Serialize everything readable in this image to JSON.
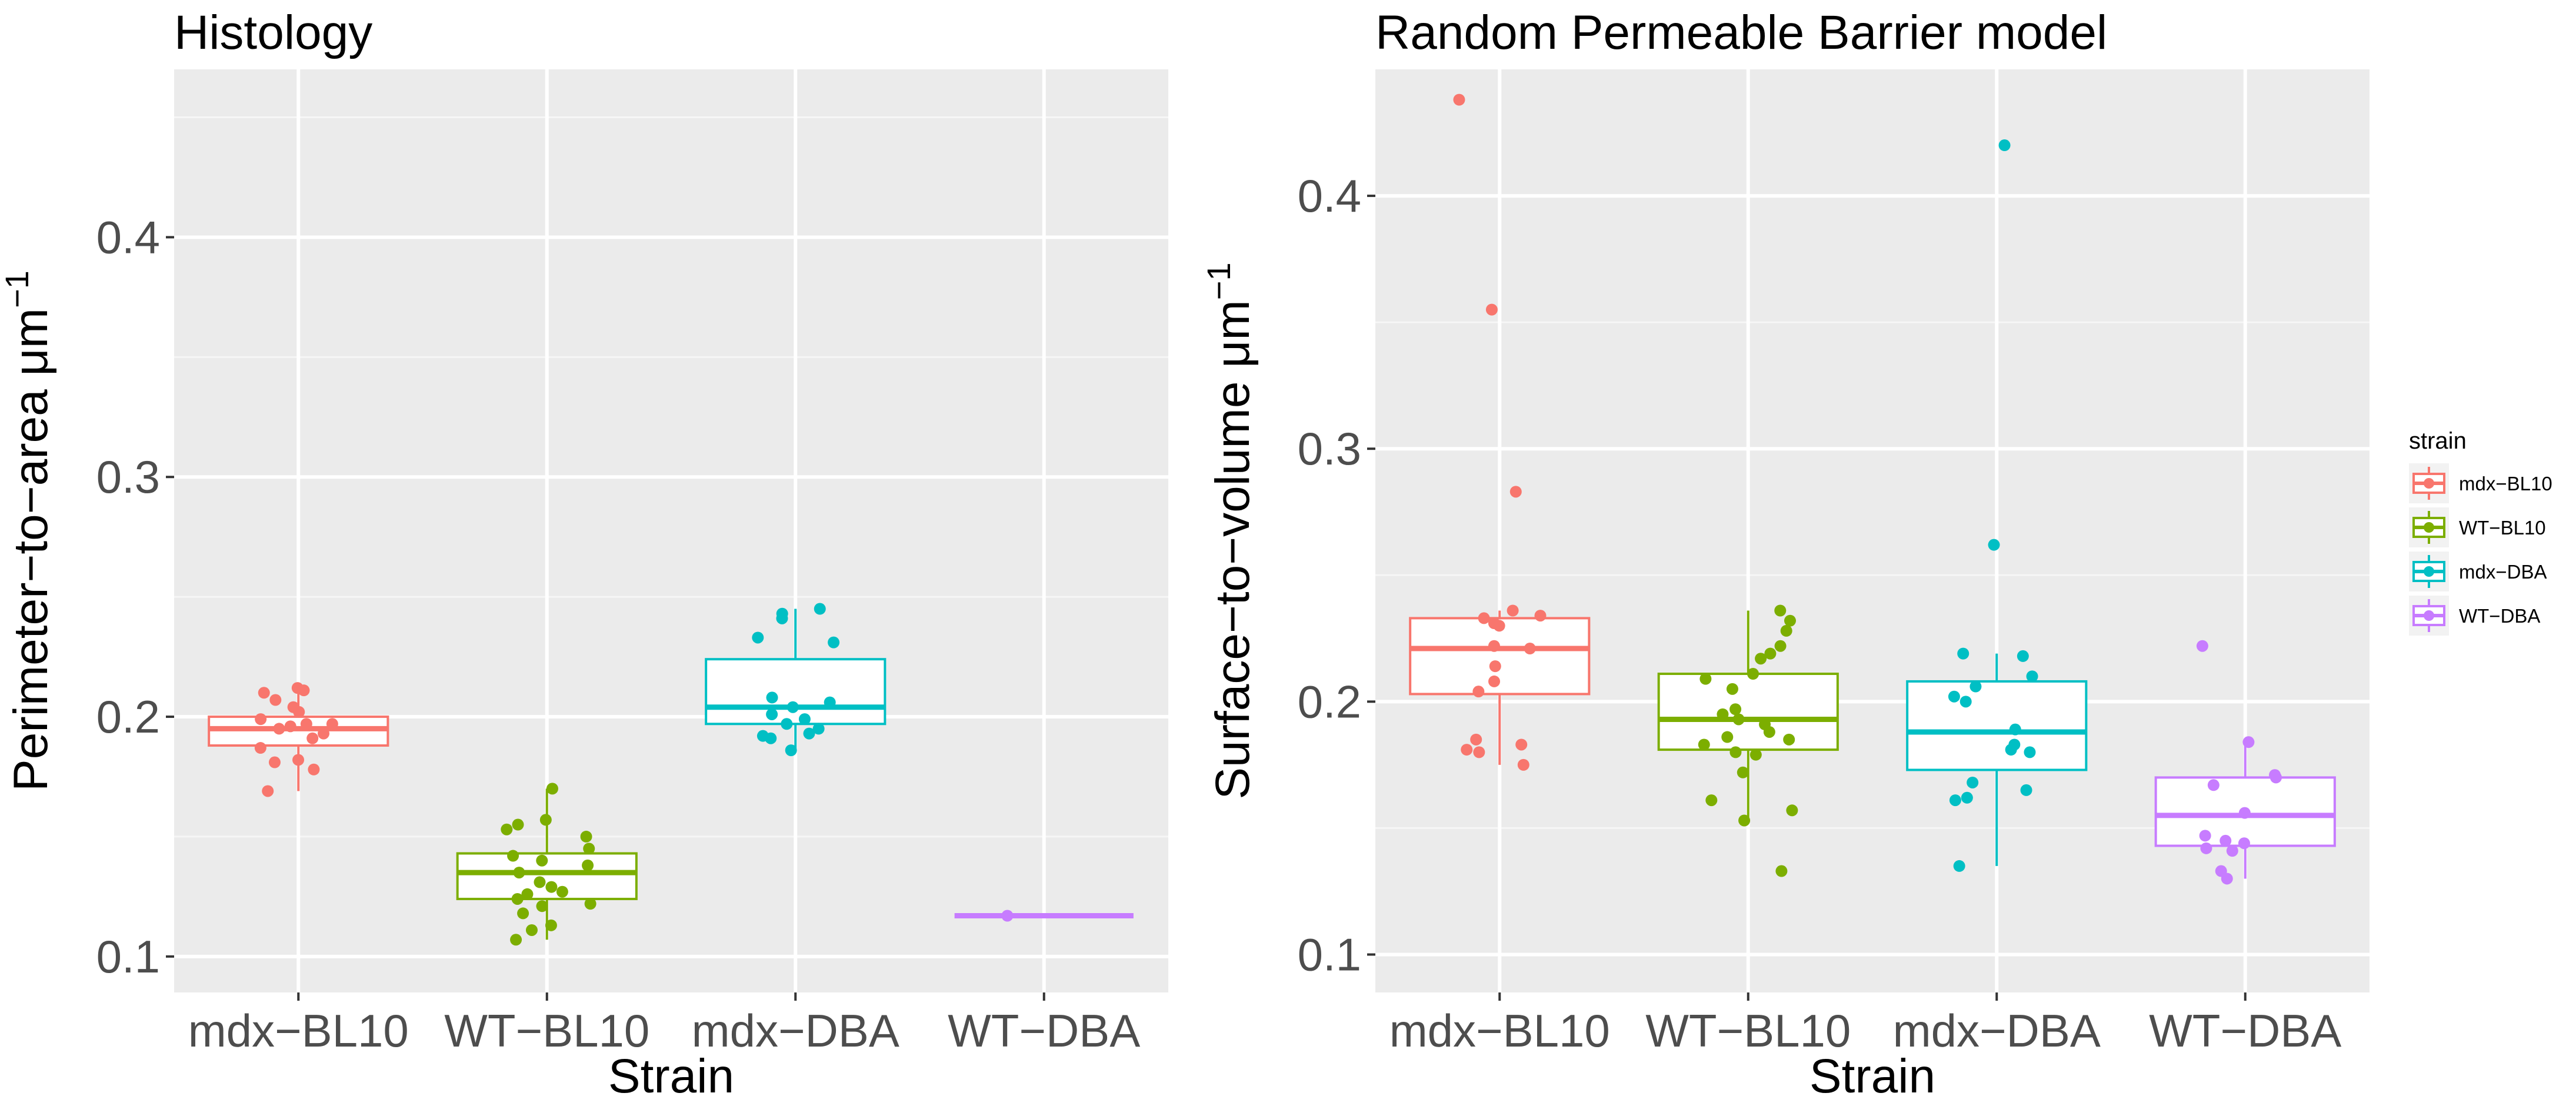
{
  "legend": {
    "title": "strain",
    "entries": [
      {
        "label": "mdx−BL10",
        "color": "#F8766D"
      },
      {
        "label": "WT−BL10",
        "color": "#7CAE00"
      },
      {
        "label": "mdx−DBA",
        "color": "#00BFC4"
      },
      {
        "label": "WT−DBA",
        "color": "#C77CFF"
      }
    ]
  },
  "chart_data": [
    {
      "type": "boxplot",
      "title": "Histology",
      "xlabel": "Strain",
      "ylabel": "Perimeter−to−area μm",
      "ylabel_sup": "−1",
      "categories": [
        "mdx−BL10",
        "WT−BL10",
        "mdx−DBA",
        "WT−DBA"
      ],
      "yticks": [
        0.1,
        0.2,
        0.3,
        0.4
      ],
      "ytick_labels": [
        "0.1",
        "0.2",
        "0.3",
        "0.4"
      ],
      "ylim": [
        0.085,
        0.47
      ],
      "boxes": [
        {
          "category": "mdx−BL10",
          "q1": 0.188,
          "median": 0.195,
          "q3": 0.2,
          "whisker_low": 0.169,
          "whisker_high": 0.212,
          "points": [
            0.212,
            0.211,
            0.21,
            0.207,
            0.204,
            0.202,
            0.199,
            0.197,
            0.197,
            0.196,
            0.195,
            0.193,
            0.191,
            0.187,
            0.182,
            0.181,
            0.178,
            0.169
          ]
        },
        {
          "category": "WT−BL10",
          "q1": 0.124,
          "median": 0.135,
          "q3": 0.143,
          "whisker_low": 0.107,
          "whisker_high": 0.17,
          "points": [
            0.17,
            0.157,
            0.155,
            0.153,
            0.15,
            0.145,
            0.142,
            0.14,
            0.138,
            0.135,
            0.131,
            0.129,
            0.127,
            0.126,
            0.124,
            0.122,
            0.121,
            0.118,
            0.113,
            0.111,
            0.107
          ]
        },
        {
          "category": "mdx−DBA",
          "q1": 0.197,
          "median": 0.204,
          "q3": 0.224,
          "whisker_low": 0.186,
          "whisker_high": 0.245,
          "points": [
            0.245,
            0.243,
            0.241,
            0.233,
            0.231,
            0.208,
            0.206,
            0.204,
            0.201,
            0.199,
            0.197,
            0.195,
            0.193,
            0.192,
            0.191,
            0.186
          ]
        },
        {
          "category": "WT−DBA",
          "q1": 0.117,
          "median": 0.117,
          "q3": 0.117,
          "whisker_low": 0.117,
          "whisker_high": 0.117,
          "points": [
            0.117
          ]
        }
      ]
    },
    {
      "type": "boxplot",
      "title": "Random Permeable Barrier model",
      "xlabel": "Strain",
      "ylabel": "Surface−to−volume μm",
      "ylabel_sup": "−1",
      "categories": [
        "mdx−BL10",
        "WT−BL10",
        "mdx−DBA",
        "WT−DBA"
      ],
      "yticks": [
        0.1,
        0.2,
        0.3,
        0.4
      ],
      "ytick_labels": [
        "0.1",
        "0.2",
        "0.3",
        "0.4"
      ],
      "ylim": [
        0.085,
        0.45
      ],
      "boxes": [
        {
          "category": "mdx−BL10",
          "q1": 0.203,
          "median": 0.221,
          "q3": 0.233,
          "whisker_low": 0.175,
          "whisker_high": 0.236,
          "points": [
            0.438,
            0.355,
            0.283,
            0.236,
            0.234,
            0.233,
            0.231,
            0.23,
            0.222,
            0.221,
            0.214,
            0.208,
            0.204,
            0.185,
            0.183,
            0.181,
            0.18,
            0.175
          ]
        },
        {
          "category": "WT−BL10",
          "q1": 0.181,
          "median": 0.193,
          "q3": 0.211,
          "whisker_low": 0.153,
          "whisker_high": 0.236,
          "points": [
            0.236,
            0.232,
            0.228,
            0.222,
            0.219,
            0.217,
            0.211,
            0.209,
            0.205,
            0.197,
            0.195,
            0.193,
            0.191,
            0.188,
            0.186,
            0.185,
            0.183,
            0.18,
            0.179,
            0.172,
            0.161,
            0.157,
            0.153,
            0.133
          ]
        },
        {
          "category": "mdx−DBA",
          "q1": 0.173,
          "median": 0.188,
          "q3": 0.208,
          "whisker_low": 0.135,
          "whisker_high": 0.219,
          "points": [
            0.42,
            0.262,
            0.219,
            0.218,
            0.21,
            0.206,
            0.202,
            0.2,
            0.189,
            0.183,
            0.181,
            0.18,
            0.168,
            0.165,
            0.162,
            0.161,
            0.135
          ]
        },
        {
          "category": "WT−DBA",
          "q1": 0.143,
          "median": 0.155,
          "q3": 0.17,
          "whisker_low": 0.13,
          "whisker_high": 0.184,
          "points": [
            0.222,
            0.184,
            0.171,
            0.17,
            0.167,
            0.156,
            0.147,
            0.145,
            0.144,
            0.142,
            0.141,
            0.133,
            0.13
          ]
        }
      ]
    }
  ]
}
